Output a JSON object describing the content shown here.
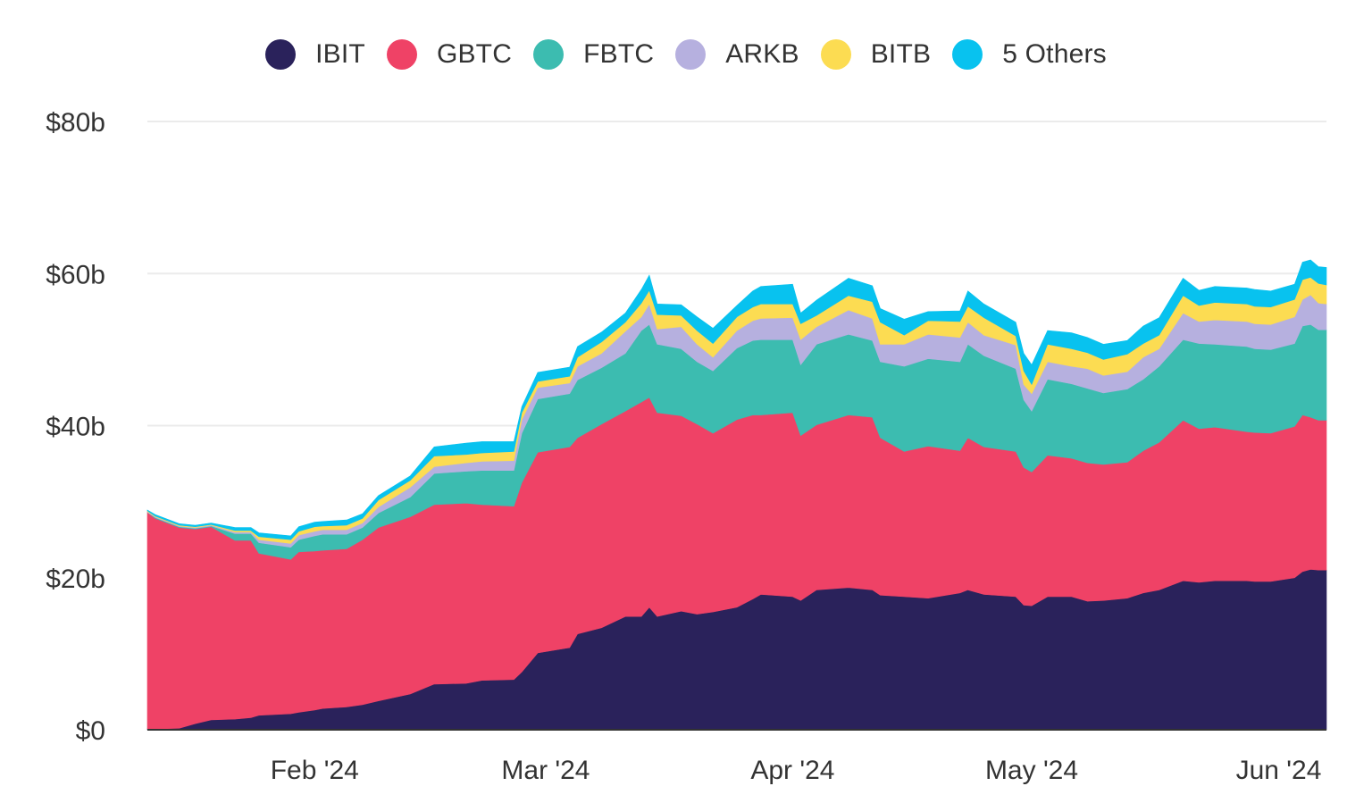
{
  "chart_data": {
    "type": "area",
    "stacked": true,
    "title": "",
    "xlabel": "",
    "ylabel": "",
    "ylim": [
      0,
      80
    ],
    "y_unit": "$b",
    "y_ticks": [
      {
        "value": 0,
        "label": "$0"
      },
      {
        "value": 20,
        "label": "$20b"
      },
      {
        "value": 40,
        "label": "$40b"
      },
      {
        "value": 60,
        "label": "$60b"
      },
      {
        "value": 80,
        "label": "$80b"
      }
    ],
    "x_range": [
      "2024-01-11",
      "2024-06-07"
    ],
    "x_ticks": [
      {
        "date": "2024-02-01",
        "label": "Feb '24"
      },
      {
        "date": "2024-03-01",
        "label": "Mar '24"
      },
      {
        "date": "2024-04-01",
        "label": "Apr '24"
      },
      {
        "date": "2024-05-01",
        "label": "May '24"
      },
      {
        "date": "2024-06-01",
        "label": "Jun '24"
      }
    ],
    "grid": true,
    "legend_position": "top-center",
    "x": [
      "2024-01-11",
      "2024-01-12",
      "2024-01-15",
      "2024-01-17",
      "2024-01-19",
      "2024-01-22",
      "2024-01-24",
      "2024-01-25",
      "2024-01-29",
      "2024-01-30",
      "2024-02-01",
      "2024-02-02",
      "2024-02-05",
      "2024-02-07",
      "2024-02-09",
      "2024-02-13",
      "2024-02-16",
      "2024-02-20",
      "2024-02-22",
      "2024-02-26",
      "2024-02-27",
      "2024-02-29",
      "2024-03-04",
      "2024-03-05",
      "2024-03-08",
      "2024-03-11",
      "2024-03-13",
      "2024-03-14",
      "2024-03-15",
      "2024-03-18",
      "2024-03-20",
      "2024-03-22",
      "2024-03-25",
      "2024-03-27",
      "2024-03-28",
      "2024-04-01",
      "2024-04-02",
      "2024-04-04",
      "2024-04-08",
      "2024-04-11",
      "2024-04-12",
      "2024-04-15",
      "2024-04-18",
      "2024-04-22",
      "2024-04-23",
      "2024-04-25",
      "2024-04-29",
      "2024-04-30",
      "2024-05-01",
      "2024-05-03",
      "2024-05-06",
      "2024-05-08",
      "2024-05-10",
      "2024-05-13",
      "2024-05-15",
      "2024-05-17",
      "2024-05-20",
      "2024-05-22",
      "2024-05-24",
      "2024-05-28",
      "2024-05-29",
      "2024-05-31",
      "2024-06-03",
      "2024-06-04",
      "2024-06-05",
      "2024-06-06",
      "2024-06-07"
    ],
    "series": [
      {
        "name": "IBIT",
        "color": "#2a225b",
        "values": [
          0.1,
          0.1,
          0.2,
          0.8,
          1.3,
          1.4,
          1.6,
          1.9,
          2.1,
          2.3,
          2.6,
          2.8,
          3.0,
          3.3,
          3.8,
          4.7,
          6.0,
          6.1,
          6.5,
          6.6,
          7.6,
          10.1,
          10.8,
          12.6,
          13.4,
          14.9,
          14.9,
          16.1,
          14.9,
          15.6,
          15.2,
          15.5,
          16.1,
          17.2,
          17.8,
          17.5,
          17.0,
          18.4,
          18.7,
          18.4,
          17.7,
          17.5,
          17.3,
          18.0,
          18.4,
          17.8,
          17.5,
          16.4,
          16.3,
          17.5,
          17.5,
          16.9,
          17.0,
          17.3,
          18.0,
          18.4,
          19.6,
          19.4,
          19.6,
          19.6,
          19.5,
          19.5,
          20.0,
          20.8,
          21.1,
          21.0,
          21.0
        ]
      },
      {
        "name": "GBTC",
        "color": "#ef4266",
        "values": [
          28.5,
          27.7,
          26.4,
          25.6,
          25.4,
          23.5,
          23.3,
          21.3,
          20.3,
          21.1,
          20.9,
          20.8,
          20.8,
          21.7,
          22.8,
          23.3,
          23.6,
          23.7,
          23.1,
          22.8,
          24.9,
          26.4,
          26.4,
          25.8,
          26.8,
          27.0,
          28.2,
          27.6,
          26.8,
          25.7,
          25.0,
          23.5,
          24.7,
          24.2,
          23.6,
          24.2,
          21.7,
          21.7,
          22.7,
          22.7,
          20.7,
          19.1,
          20.0,
          18.7,
          20.0,
          19.4,
          19.1,
          18.1,
          17.6,
          18.6,
          18.2,
          18.2,
          17.9,
          17.9,
          18.7,
          19.4,
          21.1,
          20.2,
          20.2,
          19.6,
          19.6,
          19.5,
          19.9,
          20.6,
          20.0,
          19.7,
          19.7
        ]
      },
      {
        "name": "FBTC",
        "color": "#3cbcb0",
        "values": [
          0.0,
          0.1,
          0.1,
          0.1,
          0.1,
          0.9,
          0.9,
          1.4,
          1.6,
          1.6,
          2.0,
          2.1,
          1.9,
          1.6,
          1.9,
          2.6,
          4.1,
          4.2,
          4.5,
          4.7,
          6.5,
          7.0,
          7.0,
          7.6,
          7.4,
          7.6,
          9.4,
          9.6,
          9.0,
          8.8,
          8.2,
          8.2,
          9.4,
          9.8,
          9.9,
          9.6,
          9.3,
          10.6,
          10.6,
          10.1,
          10.0,
          11.2,
          11.5,
          11.7,
          12.3,
          12.0,
          10.9,
          8.9,
          8.0,
          10.0,
          9.8,
          9.8,
          9.4,
          9.6,
          9.4,
          10.0,
          10.6,
          11.2,
          10.9,
          11.2,
          11.0,
          11.0,
          10.9,
          11.7,
          12.2,
          11.9,
          11.9
        ]
      },
      {
        "name": "ARKB",
        "color": "#b6b0df",
        "values": [
          0.1,
          0.1,
          0.1,
          0.1,
          0.1,
          0.2,
          0.2,
          0.4,
          0.5,
          0.6,
          0.6,
          0.6,
          0.6,
          0.6,
          0.8,
          1.3,
          0.9,
          1.1,
          1.2,
          1.3,
          1.8,
          1.5,
          1.4,
          1.8,
          1.9,
          2.9,
          1.8,
          2.7,
          2.0,
          2.9,
          2.3,
          1.8,
          2.3,
          2.6,
          2.8,
          2.9,
          3.3,
          2.3,
          3.2,
          2.9,
          2.3,
          2.9,
          3.2,
          3.2,
          2.9,
          2.7,
          3.1,
          2.0,
          2.3,
          2.3,
          2.3,
          2.6,
          2.3,
          2.3,
          2.9,
          2.3,
          3.5,
          2.9,
          3.2,
          3.3,
          3.3,
          3.3,
          3.5,
          3.5,
          3.9,
          3.5,
          3.4
        ]
      },
      {
        "name": "BITB",
        "color": "#fcdc52",
        "values": [
          0.1,
          0.1,
          0.1,
          0.1,
          0.1,
          0.2,
          0.2,
          0.4,
          0.5,
          0.5,
          0.6,
          0.5,
          0.6,
          0.6,
          0.9,
          0.9,
          1.4,
          1.1,
          1.1,
          1.2,
          0.9,
          0.8,
          0.9,
          1.2,
          1.5,
          1.2,
          1.8,
          1.8,
          1.9,
          1.5,
          1.8,
          1.8,
          1.8,
          1.8,
          1.9,
          1.8,
          2.1,
          1.5,
          1.9,
          2.2,
          2.9,
          1.2,
          1.8,
          2.1,
          2.1,
          2.3,
          1.2,
          1.8,
          1.2,
          2.3,
          2.3,
          2.1,
          2.1,
          2.3,
          1.8,
          1.8,
          2.3,
          2.1,
          2.3,
          2.3,
          2.3,
          2.3,
          2.3,
          2.6,
          2.3,
          2.6,
          2.5
        ]
      },
      {
        "name": "5 Others",
        "color": "#08c2ef",
        "values": [
          0.1,
          0.2,
          0.2,
          0.2,
          0.2,
          0.4,
          0.4,
          0.5,
          0.5,
          0.6,
          0.6,
          0.6,
          0.7,
          0.6,
          0.6,
          0.6,
          1.2,
          1.5,
          1.5,
          1.3,
          0.8,
          1.2,
          1.2,
          1.4,
          1.3,
          1.2,
          1.8,
          2.0,
          1.4,
          1.4,
          1.8,
          2.0,
          1.5,
          2.1,
          2.3,
          2.6,
          1.4,
          2.0,
          2.3,
          2.1,
          1.8,
          2.1,
          1.2,
          1.4,
          2.0,
          1.8,
          1.8,
          2.3,
          2.6,
          1.8,
          2.1,
          2.0,
          2.0,
          1.8,
          2.3,
          2.3,
          2.3,
          2.0,
          2.1,
          2.1,
          2.2,
          2.1,
          2.0,
          2.3,
          2.3,
          2.2,
          2.3
        ]
      }
    ]
  }
}
